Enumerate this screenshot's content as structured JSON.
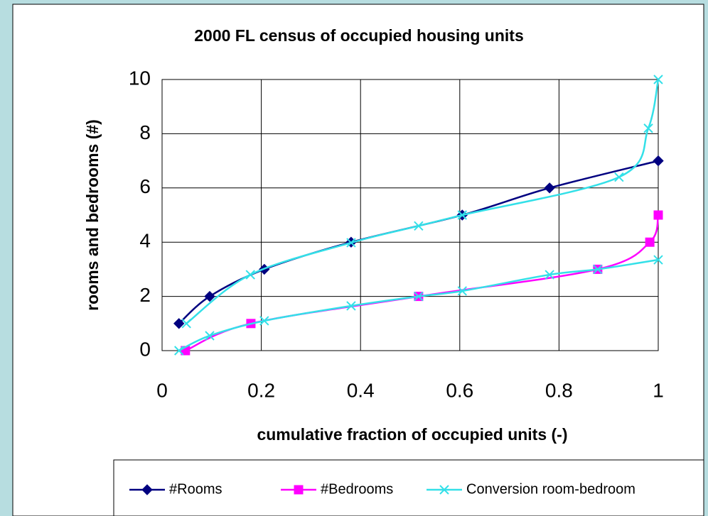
{
  "chart_data": {
    "type": "scatter-smooth",
    "title": "2000 FL census of occupied housing units",
    "x_label": "cumulative fraction of occupied units (-)",
    "y_label": "rooms and bedrooms (#)",
    "xlim": [
      0,
      1
    ],
    "xticks": [
      0,
      0.2,
      0.4,
      0.6,
      0.8,
      1
    ],
    "ylim": [
      0,
      10
    ],
    "yticks": [
      0,
      2,
      4,
      6,
      8,
      10
    ],
    "grid": true,
    "legend": "bottom",
    "series": [
      {
        "name": "#Rooms",
        "color": "#000080",
        "marker": "diamond",
        "x": [
          0.034,
          0.096,
          0.206,
          0.381,
          0.605,
          0.781,
          1
        ],
        "values": [
          1,
          2,
          3,
          4,
          5,
          6,
          7
        ]
      },
      {
        "name": "#Bedrooms",
        "color": "#ff00ff",
        "marker": "square",
        "x": [
          0.047,
          0.179,
          0.517,
          0.878,
          0.983,
          1
        ],
        "values": [
          0,
          1,
          2,
          3,
          4,
          5
        ]
      },
      {
        "name": "Conversion room-bedroom",
        "color": "#33e0e8",
        "marker": "x",
        "x": [
          0.034,
          0.096,
          0.206,
          0.381,
          0.517,
          0.605,
          0.781,
          0.878,
          1,
          null,
          0.049,
          0.178,
          0.381,
          0.517,
          0.605,
          0.921,
          0.98,
          1
        ],
        "values": [
          0,
          0.55,
          1.1,
          1.65,
          2.0,
          2.2,
          2.8,
          3.0,
          3.35,
          null,
          1.0,
          2.8,
          3.98,
          4.6,
          5.0,
          6.4,
          8.2,
          10
        ]
      }
    ]
  }
}
